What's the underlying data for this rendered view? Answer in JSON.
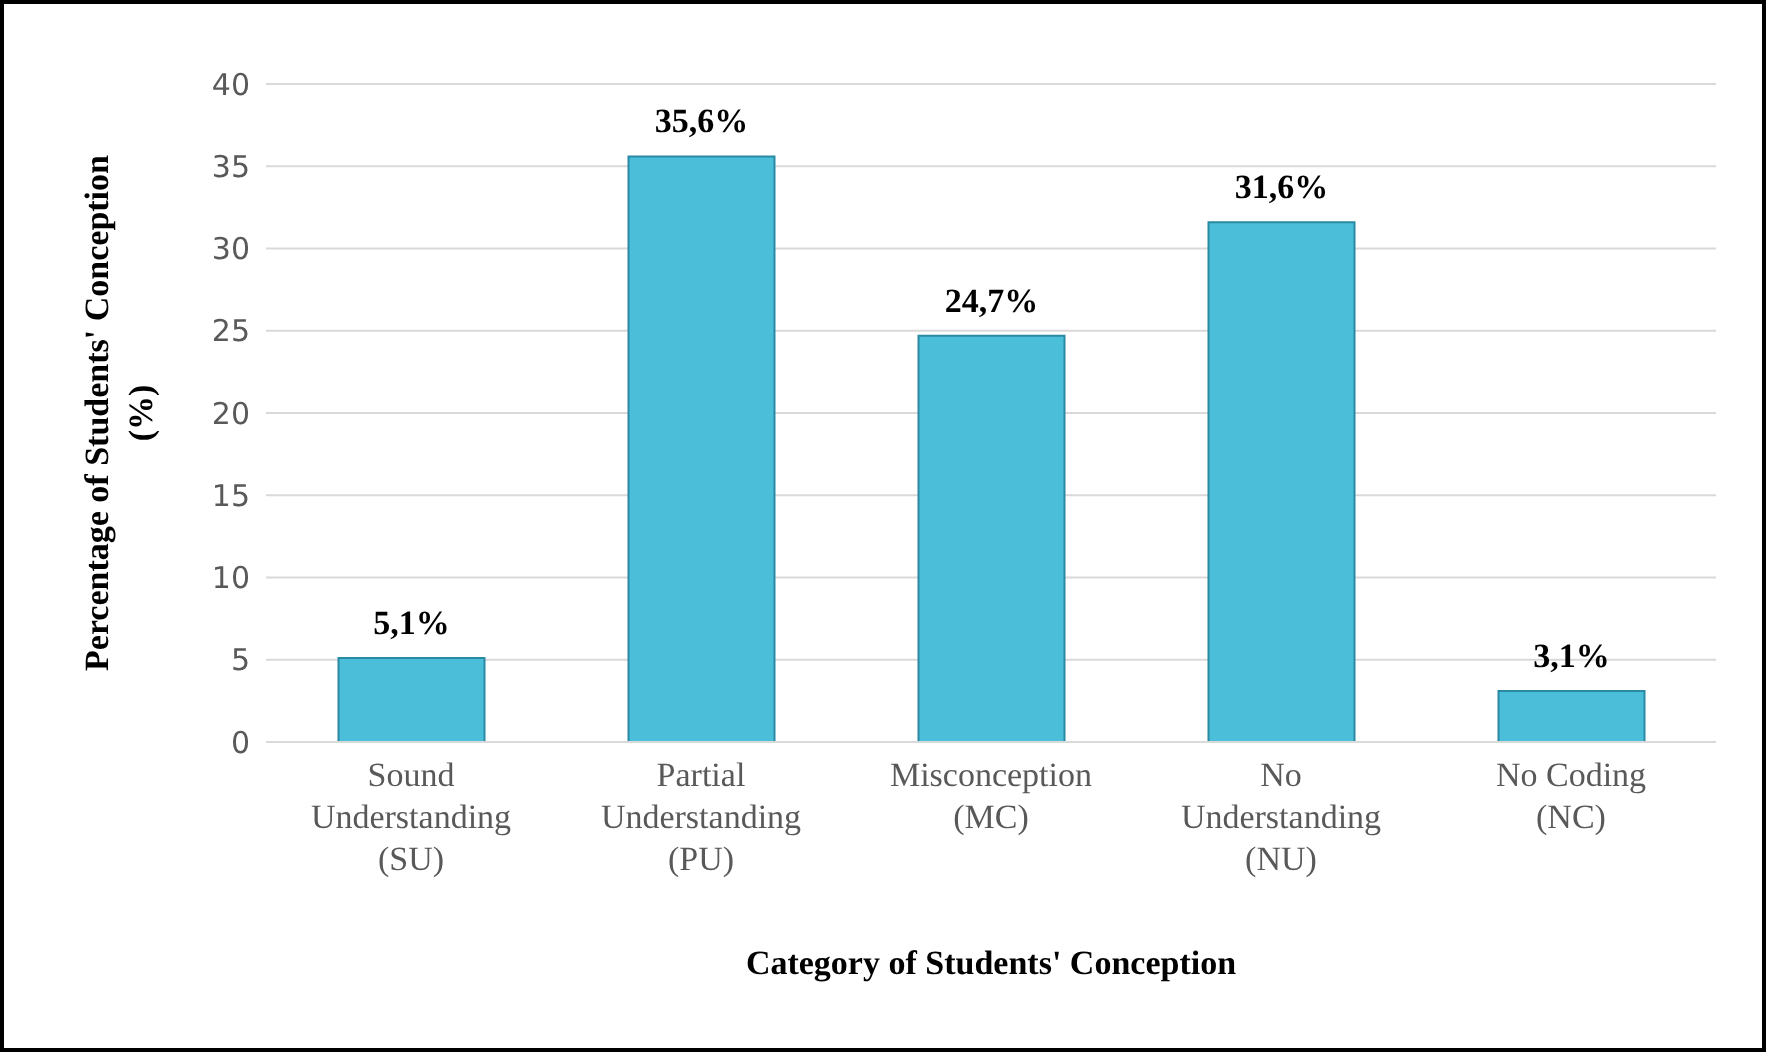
{
  "chart_data": {
    "type": "bar",
    "xlabel": "Category of Students' Conception",
    "ylabel": "Percentage of Students' Conception\n(%)",
    "categories": [
      "Sound\nUnderstanding\n(SU)",
      "Partial\nUnderstanding\n(PU)",
      "Misconception\n(MC)",
      "No\nUnderstanding\n(NU)",
      "No Coding\n(NC)"
    ],
    "values": [
      5.1,
      35.6,
      24.7,
      31.6,
      3.1
    ],
    "value_labels": [
      "5,1%",
      "35,6%",
      "24,7%",
      "31,6%",
      "3,1%"
    ],
    "color": "#4bbfd9",
    "ylim": [
      0,
      40
    ],
    "yticks": [
      0,
      5,
      10,
      15,
      20,
      25,
      30,
      35,
      40
    ],
    "grid": "y"
  }
}
